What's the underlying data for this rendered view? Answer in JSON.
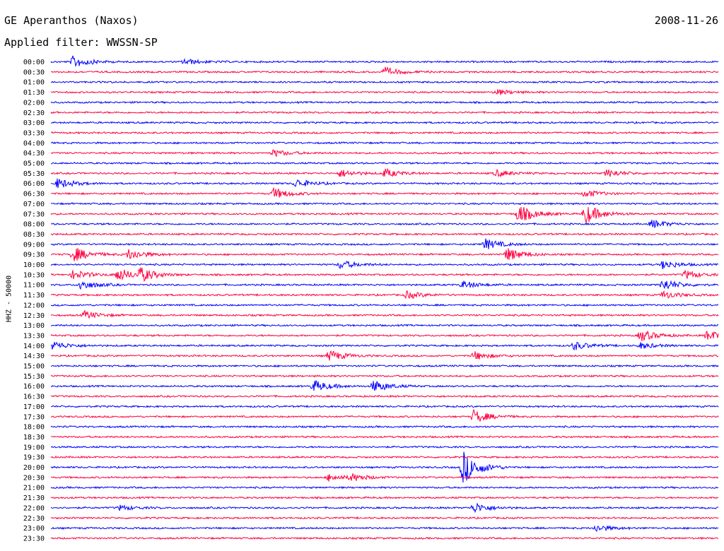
{
  "header": {
    "station": "GE Aperanthos (Naxos)",
    "date": "2008-11-26",
    "filter": "Applied filter: WWSSN-SP"
  },
  "chart_data": {
    "type": "line",
    "ylabel": "HHZ - 50000",
    "row_labels": [
      "00:00",
      "00:30",
      "01:00",
      "01:30",
      "02:00",
      "02:30",
      "03:00",
      "03:30",
      "04:00",
      "04:30",
      "05:00",
      "05:30",
      "06:00",
      "06:30",
      "07:00",
      "07:30",
      "08:00",
      "08:30",
      "09:00",
      "09:30",
      "10:00",
      "10:30",
      "11:00",
      "11:30",
      "12:00",
      "12:30",
      "13:00",
      "13:30",
      "14:00",
      "14:30",
      "15:00",
      "15:30",
      "16:00",
      "16:30",
      "17:00",
      "17:30",
      "18:00",
      "18:30",
      "19:00",
      "19:30",
      "20:00",
      "20:30",
      "21:00",
      "21:30",
      "22:00",
      "22:30",
      "23:00",
      "23:30"
    ],
    "row_minutes": 30,
    "colors": [
      "#0000ff",
      "#ff0040"
    ],
    "events": [
      {
        "row": "00:00",
        "minute": 1,
        "amp": 1.4
      },
      {
        "row": "00:00",
        "minute": 6,
        "amp": 0.7
      },
      {
        "row": "00:30",
        "minute": 15,
        "amp": 1.0
      },
      {
        "row": "01:30",
        "minute": 20,
        "amp": 0.7
      },
      {
        "row": "04:30",
        "minute": 10,
        "amp": 0.8
      },
      {
        "row": "05:30",
        "minute": 13,
        "amp": 0.9
      },
      {
        "row": "05:30",
        "minute": 15,
        "amp": 1.0
      },
      {
        "row": "05:30",
        "minute": 20,
        "amp": 0.8
      },
      {
        "row": "05:30",
        "minute": 25,
        "amp": 0.9
      },
      {
        "row": "06:00",
        "minute": 0.3,
        "amp": 1.2
      },
      {
        "row": "06:00",
        "minute": 11,
        "amp": 1.0
      },
      {
        "row": "06:30",
        "minute": 10,
        "amp": 1.3
      },
      {
        "row": "06:30",
        "minute": 24,
        "amp": 0.9
      },
      {
        "row": "07:30",
        "minute": 21,
        "amp": 2.2
      },
      {
        "row": "07:30",
        "minute": 24,
        "amp": 2.4
      },
      {
        "row": "08:00",
        "minute": 27,
        "amp": 1.0
      },
      {
        "row": "09:00",
        "minute": 19.5,
        "amp": 1.3
      },
      {
        "row": "09:30",
        "minute": 1,
        "amp": 1.8
      },
      {
        "row": "09:30",
        "minute": 3.5,
        "amp": 1.3
      },
      {
        "row": "09:30",
        "minute": 20.5,
        "amp": 1.6
      },
      {
        "row": "10:00",
        "minute": 13,
        "amp": 1.0
      },
      {
        "row": "10:00",
        "minute": 27.5,
        "amp": 1.0
      },
      {
        "row": "10:30",
        "minute": 1,
        "amp": 1.1
      },
      {
        "row": "10:30",
        "minute": 3,
        "amp": 1.6
      },
      {
        "row": "10:30",
        "minute": 4,
        "amp": 1.5
      },
      {
        "row": "10:30",
        "minute": 28.5,
        "amp": 1.0
      },
      {
        "row": "11:00",
        "minute": 1.3,
        "amp": 1.2
      },
      {
        "row": "11:00",
        "minute": 18.5,
        "amp": 0.9
      },
      {
        "row": "11:00",
        "minute": 27.5,
        "amp": 1.4
      },
      {
        "row": "11:30",
        "minute": 16,
        "amp": 0.9
      },
      {
        "row": "11:30",
        "minute": 27.5,
        "amp": 0.9
      },
      {
        "row": "12:30",
        "minute": 1.5,
        "amp": 0.9
      },
      {
        "row": "13:30",
        "minute": 26.5,
        "amp": 1.4
      },
      {
        "row": "13:30",
        "minute": 29.5,
        "amp": 1.2
      },
      {
        "row": "14:00",
        "minute": 0.1,
        "amp": 1.0
      },
      {
        "row": "14:00",
        "minute": 23.5,
        "amp": 1.0
      },
      {
        "row": "14:00",
        "minute": 26.5,
        "amp": 0.7
      },
      {
        "row": "14:30",
        "minute": 12.5,
        "amp": 1.3
      },
      {
        "row": "14:30",
        "minute": 19,
        "amp": 1.0
      },
      {
        "row": "16:00",
        "minute": 11.8,
        "amp": 1.4
      },
      {
        "row": "16:00",
        "minute": 14.5,
        "amp": 1.4
      },
      {
        "row": "17:30",
        "minute": 19,
        "amp": 1.6
      },
      {
        "row": "20:00",
        "minute": 18.5,
        "amp": 4.0
      },
      {
        "row": "20:30",
        "minute": 12.5,
        "amp": 0.9
      },
      {
        "row": "20:30",
        "minute": 13.5,
        "amp": 0.8
      },
      {
        "row": "22:00",
        "minute": 3.1,
        "amp": 0.6
      },
      {
        "row": "22:00",
        "minute": 19,
        "amp": 1.2
      },
      {
        "row": "23:00",
        "minute": 24.5,
        "amp": 0.8
      }
    ]
  }
}
